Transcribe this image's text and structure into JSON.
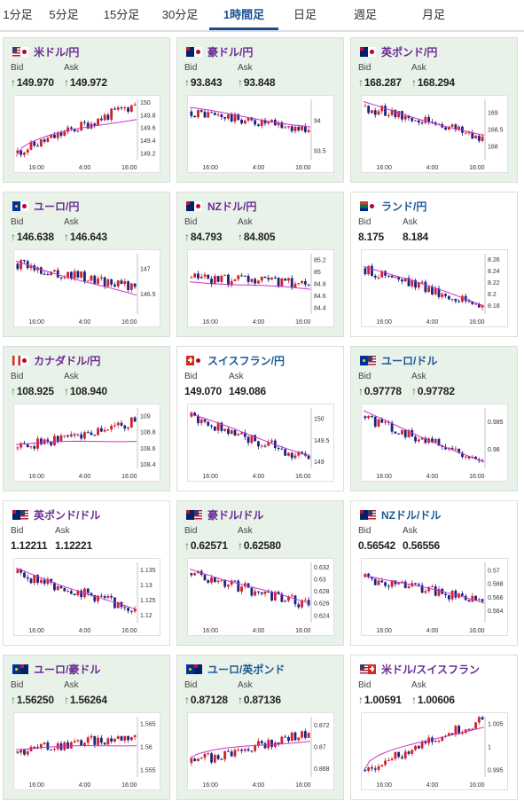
{
  "tabs": [
    {
      "label": "1分足",
      "active": false
    },
    {
      "label": "5分足",
      "active": false
    },
    {
      "label": "15分足",
      "active": false
    },
    {
      "label": "30分足",
      "active": false
    },
    {
      "label": "1時間足",
      "active": true
    },
    {
      "label": "日足",
      "active": false
    },
    {
      "label": "週足",
      "active": false
    },
    {
      "label": "月足",
      "active": false
    }
  ],
  "labels": {
    "bid": "Bid",
    "ask": "Ask"
  },
  "colors": {
    "up_candle": "#d0202a",
    "down_candle": "#1a237e",
    "ma_line": "#cc33cc",
    "up_arrow": "#2a8a2a"
  },
  "pairs": [
    {
      "name": "米ドル/円",
      "flag": "us-jp",
      "title_color": "purple",
      "bg": "green",
      "bid": "149.970",
      "ask": "149.972",
      "bid_up": true,
      "ask_up": true,
      "x_ticks": [
        "16:00",
        "4:00",
        "16:00"
      ],
      "y_ticks": [
        "150",
        "149.8",
        "149.6",
        "149.4",
        "149.2"
      ],
      "chart_data": {
        "type": "candlestick",
        "trend": "up",
        "ylim": [
          149.1,
          150.05
        ],
        "start": 149.2,
        "end": 149.97,
        "ma_start": 149.15,
        "ma_end": 149.75
      }
    },
    {
      "name": "豪ドル/円",
      "flag": "au-jp",
      "title_color": "purple",
      "bg": "green",
      "bid": "93.843",
      "ask": "93.848",
      "bid_up": true,
      "ask_up": true,
      "x_ticks": [
        "16:00",
        "4:00",
        "16:00"
      ],
      "y_ticks": [
        "94",
        "93.5"
      ],
      "chart_data": {
        "type": "candlestick",
        "trend": "down",
        "ylim": [
          93.35,
          94.35
        ],
        "start": 94.15,
        "end": 93.84,
        "ma_start": 94.2,
        "ma_end": 93.9
      }
    },
    {
      "name": "英ポンド/円",
      "flag": "gb-jp",
      "title_color": "purple",
      "bg": "green",
      "bid": "168.287",
      "ask": "168.294",
      "bid_up": true,
      "ask_up": true,
      "x_ticks": [
        "16:00",
        "4:00",
        "16:00"
      ],
      "y_ticks": [
        "169",
        "168.5",
        "168"
      ],
      "chart_data": {
        "type": "candlestick",
        "trend": "down",
        "ylim": [
          167.6,
          169.4
        ],
        "start": 169.2,
        "end": 168.29,
        "ma_start": 169.3,
        "ma_end": 168.3
      }
    },
    {
      "name": "ユーロ/円",
      "flag": "eu-jp",
      "title_color": "purple",
      "bg": "green",
      "bid": "146.638",
      "ask": "146.643",
      "bid_up": true,
      "ask_up": true,
      "x_ticks": [
        "16:00",
        "4:00",
        "16:00"
      ],
      "y_ticks": [
        "147",
        "146.5"
      ],
      "chart_data": {
        "type": "candlestick",
        "trend": "down",
        "ylim": [
          146.1,
          147.3
        ],
        "start": 147.1,
        "end": 146.64,
        "ma_start": 147.15,
        "ma_end": 146.45
      }
    },
    {
      "name": "NZドル/円",
      "flag": "nz-jp",
      "title_color": "purple",
      "bg": "green",
      "bid": "84.793",
      "ask": "84.805",
      "bid_up": true,
      "ask_up": true,
      "x_ticks": [
        "16:00",
        "4:00",
        "16:00"
      ],
      "y_ticks": [
        "85.2",
        "85",
        "84.8",
        "84.6",
        "84.4"
      ],
      "chart_data": {
        "type": "candlestick",
        "trend": "flat",
        "ylim": [
          84.3,
          85.3
        ],
        "start": 84.9,
        "end": 84.79,
        "ma_start": 84.85,
        "ma_end": 84.7
      }
    },
    {
      "name": "ランド/円",
      "flag": "za-jp",
      "title_color": "blue",
      "bg": "white",
      "bid": "8.175",
      "ask": "8.184",
      "bid_up": false,
      "ask_up": false,
      "x_ticks": [
        "16:00",
        "4:00",
        "16:00"
      ],
      "y_ticks": [
        "8.26",
        "8.24",
        "8.22",
        "8.2",
        "8.18"
      ],
      "chart_data": {
        "type": "candlestick",
        "trend": "down",
        "ylim": [
          8.165,
          8.27
        ],
        "start": 8.245,
        "end": 8.18,
        "ma_start": 8.25,
        "ma_end": 8.18
      }
    },
    {
      "name": "カナダドル/円",
      "flag": "ca-jp",
      "title_color": "purple",
      "bg": "green",
      "bid": "108.925",
      "ask": "108.940",
      "bid_up": true,
      "ask_up": true,
      "x_ticks": [
        "16:00",
        "4:00",
        "16:00"
      ],
      "y_ticks": [
        "109",
        "108.8",
        "108.6",
        "108.4"
      ],
      "chart_data": {
        "type": "candlestick",
        "trend": "flat",
        "ylim": [
          108.35,
          109.1
        ],
        "start": 108.6,
        "end": 108.93,
        "ma_start": 108.65,
        "ma_end": 108.7
      }
    },
    {
      "name": "スイスフラン/円",
      "flag": "ch-jp",
      "title_color": "blue",
      "bg": "white",
      "bid": "149.070",
      "ask": "149.086",
      "bid_up": false,
      "ask_up": false,
      "x_ticks": [
        "16:00",
        "4:00",
        "16:00"
      ],
      "y_ticks": [
        "150",
        "149.5",
        "149"
      ],
      "chart_data": {
        "type": "candlestick",
        "trend": "down",
        "ylim": [
          148.85,
          150.25
        ],
        "start": 150.05,
        "end": 149.07,
        "ma_start": 150.1,
        "ma_end": 149.15
      }
    },
    {
      "name": "ユーロ/ドル",
      "flag": "eu-us",
      "title_color": "blue",
      "bg": "green",
      "bid": "0.97778",
      "ask": "0.97782",
      "bid_up": true,
      "ask_up": true,
      "x_ticks": [
        "16:00",
        "4:00",
        "16:00"
      ],
      "y_ticks": [
        "0.985",
        "0.98"
      ],
      "chart_data": {
        "type": "candlestick",
        "trend": "down",
        "ylim": [
          0.9765,
          0.9875
        ],
        "start": 0.986,
        "end": 0.9778,
        "ma_start": 0.9868,
        "ma_end": 0.9776
      }
    },
    {
      "name": "英ポンド/ドル",
      "flag": "gb-us",
      "title_color": "purple",
      "bg": "white",
      "bid": "1.12211",
      "ask": "1.12221",
      "bid_up": false,
      "ask_up": false,
      "x_ticks": [
        "16:00",
        "4:00",
        "16:00"
      ],
      "y_ticks": [
        "1.135",
        "1.13",
        "1.125",
        "1.12"
      ],
      "chart_data": {
        "type": "candlestick",
        "trend": "down",
        "ylim": [
          1.1175,
          1.1375
        ],
        "start": 1.134,
        "end": 1.1221,
        "ma_start": 1.1355,
        "ma_end": 1.1215
      }
    },
    {
      "name": "豪ドル/ドル",
      "flag": "au-us",
      "title_color": "purple",
      "bg": "green",
      "bid": "0.62571",
      "ask": "0.62580",
      "bid_up": true,
      "ask_up": true,
      "x_ticks": [
        "16:00",
        "4:00",
        "16:00"
      ],
      "y_ticks": [
        "0.632",
        "0.63",
        "0.628",
        "0.626",
        "0.624"
      ],
      "chart_data": {
        "type": "candlestick",
        "trend": "down",
        "ylim": [
          0.6228,
          0.6328
        ],
        "start": 0.631,
        "end": 0.6257,
        "ma_start": 0.6318,
        "ma_end": 0.6258
      }
    },
    {
      "name": "NZドル/ドル",
      "flag": "nz-us",
      "title_color": "blue",
      "bg": "white",
      "bid": "0.56542",
      "ask": "0.56556",
      "bid_up": false,
      "ask_up": false,
      "x_ticks": [
        "16:00",
        "4:00",
        "16:00"
      ],
      "y_ticks": [
        "0.57",
        "0.568",
        "0.566",
        "0.564"
      ],
      "chart_data": {
        "type": "candlestick",
        "trend": "down",
        "ylim": [
          0.5622,
          0.5712
        ],
        "start": 0.569,
        "end": 0.5654,
        "ma_start": 0.5695,
        "ma_end": 0.5652
      }
    },
    {
      "name": "ユーロ/豪ドル",
      "flag": "eu-au",
      "title_color": "purple",
      "bg": "green",
      "bid": "1.56250",
      "ask": "1.56264",
      "bid_up": true,
      "ask_up": true,
      "x_ticks": [
        "16:00",
        "4:00",
        "16:00"
      ],
      "y_ticks": [
        "1.565",
        "1.56",
        "1.555"
      ],
      "chart_data": {
        "type": "candlestick",
        "trend": "flat",
        "ylim": [
          1.5535,
          1.5665
        ],
        "start": 1.559,
        "end": 1.5625,
        "ma_start": 1.5595,
        "ma_end": 1.5605
      }
    },
    {
      "name": "ユーロ/英ポンド",
      "flag": "eu-gb",
      "title_color": "blue",
      "bg": "green",
      "bid": "0.87128",
      "ask": "0.87136",
      "bid_up": true,
      "ask_up": true,
      "x_ticks": [
        "16:00",
        "4:00",
        "16:00"
      ],
      "y_ticks": [
        "0.872",
        "0.87",
        "0.868"
      ],
      "chart_data": {
        "type": "candlestick",
        "trend": "up",
        "ylim": [
          0.8672,
          0.8728
        ],
        "start": 0.8685,
        "end": 0.8713,
        "ma_start": 0.8688,
        "ma_end": 0.8706
      }
    },
    {
      "name": "米ドル/スイスフラン",
      "flag": "us-ch",
      "title_color": "purple",
      "bg": "white",
      "bid": "1.00591",
      "ask": "1.00606",
      "bid_up": true,
      "ask_up": true,
      "x_ticks": [
        "16:00",
        "4:00",
        "16:00"
      ],
      "y_ticks": [
        "1.005",
        "1",
        "0.995"
      ],
      "chart_data": {
        "type": "candlestick",
        "trend": "up",
        "ylim": [
          0.9935,
          1.0065
        ],
        "start": 0.995,
        "end": 1.0059,
        "ma_start": 0.9945,
        "ma_end": 1.0042
      }
    }
  ]
}
